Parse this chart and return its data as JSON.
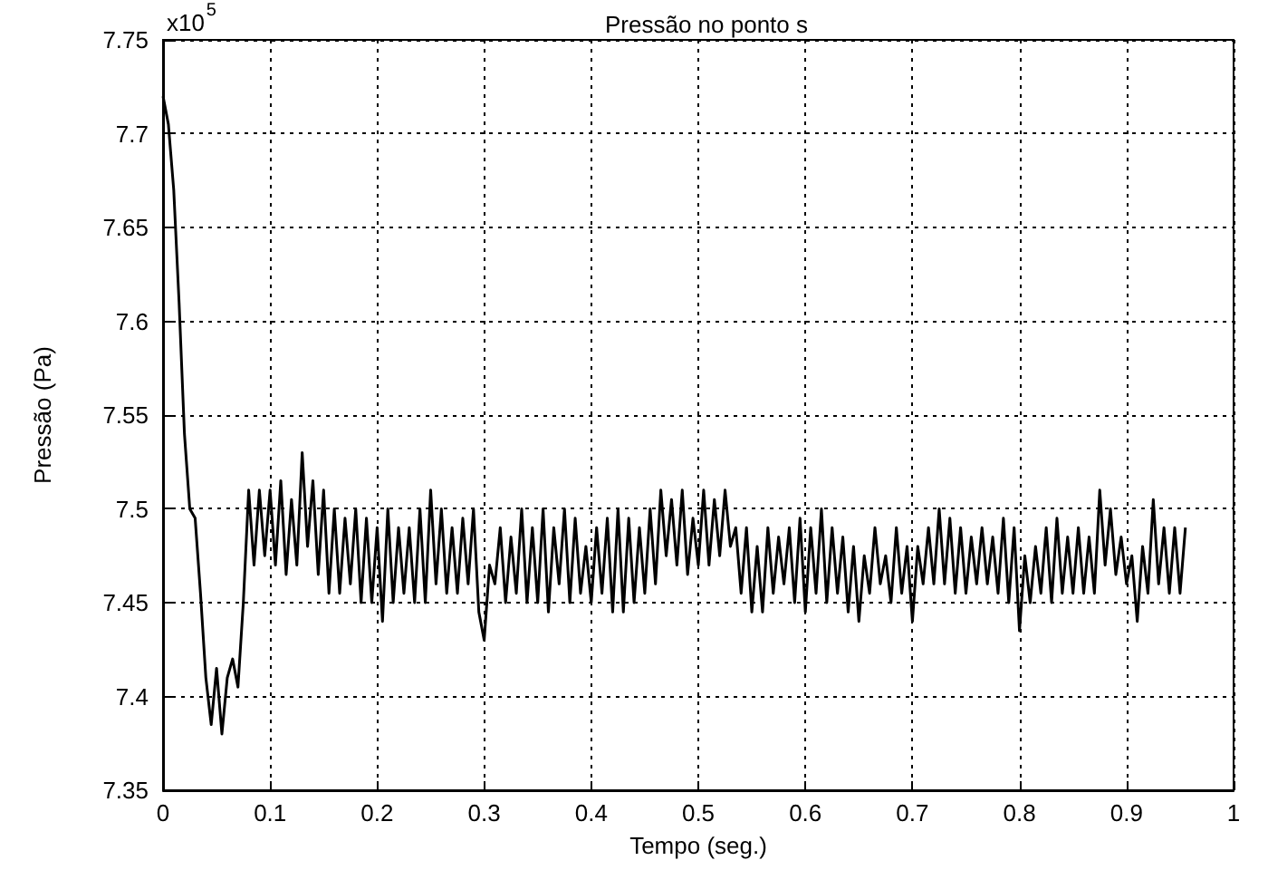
{
  "chart_data": {
    "type": "line",
    "title": "Pressão no ponto s",
    "xlabel": "Tempo (seg.)",
    "ylabel": "Pressão (Pa)",
    "annotations": [
      "x10$^{5}$"
    ],
    "xlim": [
      0,
      1
    ],
    "xticks": [
      0,
      0.1,
      0.2,
      0.3,
      0.4,
      0.5,
      0.6,
      0.7,
      0.8,
      0.9,
      1
    ],
    "ylim": [
      7.35,
      7.75
    ],
    "yticks": [
      7.35,
      7.4,
      7.45,
      7.5,
      7.55,
      7.6,
      7.65,
      7.7,
      7.75
    ],
    "grid": true,
    "marker": "none",
    "line_style": "solid",
    "series": [
      {
        "color": "#000000",
        "x": [
          0,
          0.005,
          0.01,
          0.015,
          0.02,
          0.025,
          0.03,
          0.035,
          0.04,
          0.045,
          0.05,
          0.055,
          0.06,
          0.065,
          0.07,
          0.075,
          0.08,
          0.085,
          0.09,
          0.095,
          0.1,
          0.105,
          0.11,
          0.115,
          0.12,
          0.125,
          0.13,
          0.135,
          0.14,
          0.145,
          0.15,
          0.155,
          0.16,
          0.165,
          0.17,
          0.175,
          0.18,
          0.185,
          0.19,
          0.195,
          0.2,
          0.205,
          0.21,
          0.215,
          0.22,
          0.225,
          0.23,
          0.235,
          0.24,
          0.245,
          0.25,
          0.255,
          0.26,
          0.265,
          0.27,
          0.275,
          0.28,
          0.285,
          0.29,
          0.295,
          0.3,
          0.305,
          0.31,
          0.315,
          0.32,
          0.325,
          0.33,
          0.335,
          0.34,
          0.345,
          0.35,
          0.355,
          0.36,
          0.365,
          0.37,
          0.375,
          0.38,
          0.385,
          0.39,
          0.395,
          0.4,
          0.405,
          0.41,
          0.415,
          0.42,
          0.425,
          0.43,
          0.435,
          0.44,
          0.445,
          0.45,
          0.455,
          0.46,
          0.465,
          0.47,
          0.475,
          0.48,
          0.485,
          0.49,
          0.495,
          0.5,
          0.505,
          0.51,
          0.515,
          0.52,
          0.525,
          0.53,
          0.535,
          0.54,
          0.545,
          0.55,
          0.555,
          0.56,
          0.565,
          0.57,
          0.575,
          0.58,
          0.585,
          0.59,
          0.595,
          0.6,
          0.605,
          0.61,
          0.615,
          0.62,
          0.625,
          0.63,
          0.635,
          0.64,
          0.645,
          0.65,
          0.655,
          0.66,
          0.665,
          0.67,
          0.675,
          0.68,
          0.685,
          0.69,
          0.695,
          0.7,
          0.705,
          0.71,
          0.715,
          0.72,
          0.725,
          0.73,
          0.735,
          0.74,
          0.745,
          0.75,
          0.755,
          0.76,
          0.765,
          0.77,
          0.775,
          0.78,
          0.785,
          0.79,
          0.795,
          0.8,
          0.805,
          0.81,
          0.815,
          0.82,
          0.825,
          0.83,
          0.835,
          0.84,
          0.845,
          0.85,
          0.855,
          0.86,
          0.865,
          0.87,
          0.875,
          0.88,
          0.885,
          0.89,
          0.895,
          0.9,
          0.905,
          0.91,
          0.915,
          0.92,
          0.925,
          0.93,
          0.935,
          0.94,
          0.945,
          0.95,
          0.955
        ],
        "values": [
          7.72,
          7.705,
          7.67,
          7.61,
          7.54,
          7.5,
          7.495,
          7.455,
          7.41,
          7.385,
          7.415,
          7.38,
          7.41,
          7.42,
          7.405,
          7.45,
          7.51,
          7.47,
          7.51,
          7.475,
          7.51,
          7.47,
          7.515,
          7.465,
          7.505,
          7.47,
          7.53,
          7.48,
          7.515,
          7.465,
          7.51,
          7.455,
          7.5,
          7.455,
          7.495,
          7.46,
          7.5,
          7.45,
          7.495,
          7.45,
          7.49,
          7.44,
          7.5,
          7.45,
          7.49,
          7.455,
          7.49,
          7.45,
          7.5,
          7.45,
          7.51,
          7.46,
          7.5,
          7.455,
          7.49,
          7.455,
          7.495,
          7.46,
          7.5,
          7.445,
          7.43,
          7.47,
          7.46,
          7.49,
          7.45,
          7.485,
          7.455,
          7.5,
          7.45,
          7.49,
          7.45,
          7.5,
          7.445,
          7.49,
          7.46,
          7.5,
          7.45,
          7.495,
          7.455,
          7.48,
          7.45,
          7.49,
          7.455,
          7.495,
          7.445,
          7.5,
          7.445,
          7.495,
          7.45,
          7.49,
          7.455,
          7.5,
          7.46,
          7.51,
          7.475,
          7.505,
          7.47,
          7.51,
          7.465,
          7.495,
          7.47,
          7.51,
          7.47,
          7.505,
          7.475,
          7.51,
          7.48,
          7.49,
          7.455,
          7.49,
          7.445,
          7.48,
          7.445,
          7.49,
          7.455,
          7.485,
          7.46,
          7.49,
          7.45,
          7.495,
          7.445,
          7.49,
          7.455,
          7.5,
          7.45,
          7.49,
          7.455,
          7.485,
          7.445,
          7.48,
          7.44,
          7.475,
          7.455,
          7.49,
          7.46,
          7.475,
          7.45,
          7.49,
          7.455,
          7.48,
          7.44,
          7.48,
          7.46,
          7.49,
          7.46,
          7.5,
          7.46,
          7.495,
          7.455,
          7.49,
          7.455,
          7.485,
          7.46,
          7.49,
          7.46,
          7.485,
          7.455,
          7.495,
          7.45,
          7.49,
          7.435,
          7.475,
          7.45,
          7.48,
          7.455,
          7.49,
          7.45,
          7.495,
          7.455,
          7.485,
          7.455,
          7.49,
          7.455,
          7.485,
          7.455,
          7.51,
          7.47,
          7.5,
          7.465,
          7.485,
          7.46,
          7.475,
          7.44,
          7.48,
          7.455,
          7.505,
          7.46,
          7.49,
          7.455,
          7.49,
          7.455,
          7.49
        ]
      }
    ]
  }
}
